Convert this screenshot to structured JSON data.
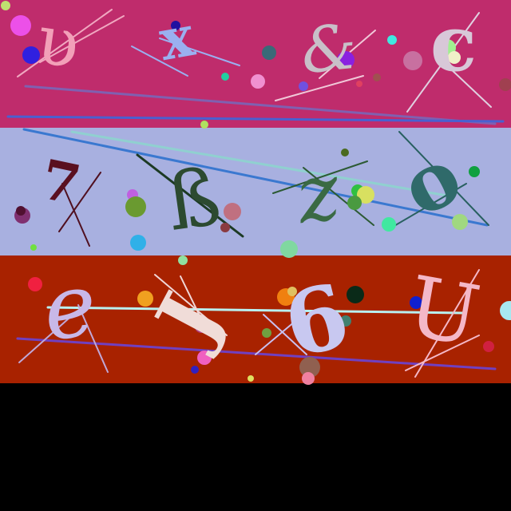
{
  "captcha": {
    "rows": [
      {
        "background": "#bf2c6c",
        "characters": [
          {
            "char": "υ",
            "color": "#f2a0b8"
          },
          {
            "char": "x",
            "color": "#9ab0f0"
          },
          {
            "char": "&",
            "color": "#c8c0c8"
          },
          {
            "char": "c",
            "color": "#d8c8d8"
          }
        ]
      },
      {
        "background": "#a8b0e0",
        "characters": [
          {
            "char": "7",
            "color": "#5a1020"
          },
          {
            "char": "ß",
            "color": "#2c4a30"
          },
          {
            "char": "z",
            "color": "#3a6a44"
          },
          {
            "char": "o",
            "color": "#2f6a6a"
          }
        ]
      },
      {
        "background": "#a82200",
        "characters": [
          {
            "char": "e",
            "color": "#c8b8e8"
          },
          {
            "char": "J",
            "color": "#f0dcd8"
          },
          {
            "char": "6",
            "color": "#c8c8f0"
          },
          {
            "char": "U",
            "color": "#f4b8c8"
          }
        ]
      }
    ],
    "footer_background": "#000000"
  }
}
